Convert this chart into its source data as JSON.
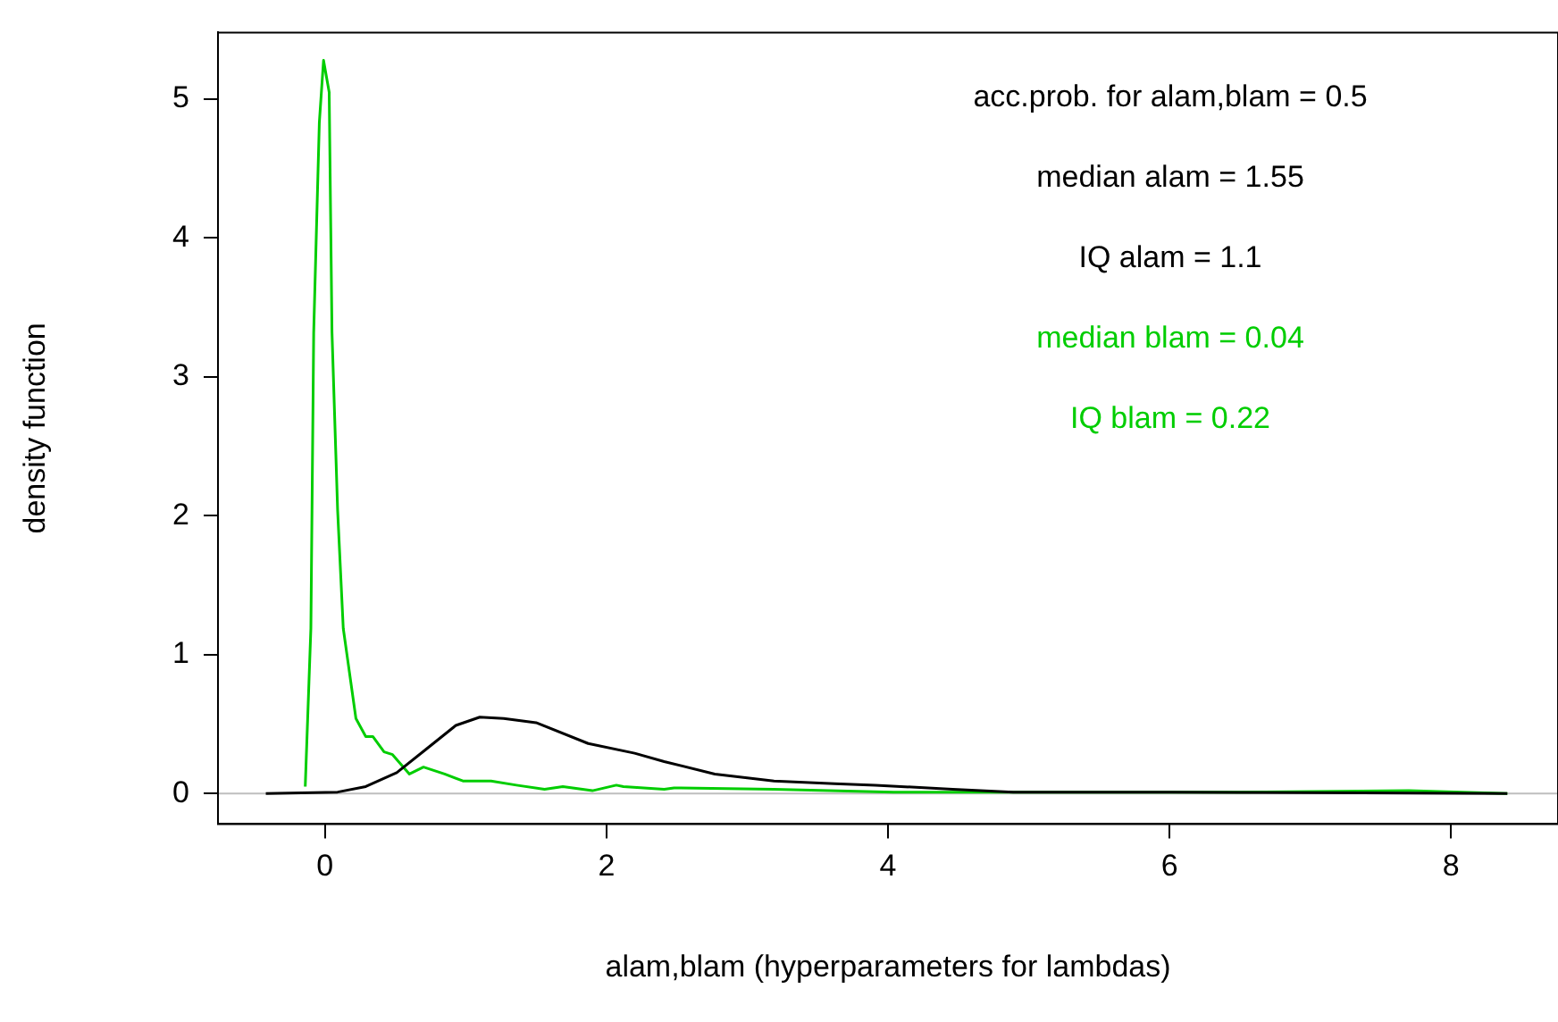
{
  "chart_data": {
    "type": "line",
    "xlabel": "alam,blam (hyperparameters for lambdas)",
    "ylabel": "density function",
    "xlim": [
      -0.76,
      8.76
    ],
    "ylim": [
      -0.22,
      5.48
    ],
    "xticks": [
      0,
      2,
      4,
      6,
      8
    ],
    "yticks": [
      0,
      1,
      2,
      3,
      4,
      5
    ],
    "grid": false,
    "legend": false,
    "marker": "none",
    "line_style": "solid",
    "ref_lines": [
      {
        "axis": "y",
        "value": 0,
        "color": "#bebebe"
      }
    ],
    "annotations": [
      "acc.prob. for alam,blam = 0.5",
      "median alam = 1.55",
      "IQ alam = 1.1",
      "median blam = 0.04",
      "IQ blam = 0.22"
    ],
    "series": [
      {
        "color": "#000000",
        "x": [
          -0.42,
          0.09,
          0.29,
          0.51,
          0.72,
          0.93,
          1.1,
          1.27,
          1.5,
          1.87,
          2.2,
          2.41,
          2.77,
          3.19,
          3.62,
          3.91,
          4.46,
          4.89,
          6,
          8.4
        ],
        "values": [
          0,
          0.01,
          0.05,
          0.15,
          0.32,
          0.49,
          0.55,
          0.54,
          0.51,
          0.36,
          0.29,
          0.23,
          0.14,
          0.09,
          0.07,
          0.06,
          0.03,
          0.01,
          0.01,
          0
        ]
      },
      {
        "color": "#00cd00",
        "x": [
          -0.14,
          -0.1,
          -0.08,
          -0.04,
          -0.01,
          0.03,
          0.05,
          0.09,
          0.13,
          0.22,
          0.29,
          0.34,
          0.42,
          0.48,
          0.6,
          0.7,
          0.85,
          0.98,
          1.18,
          1.36,
          1.56,
          1.69,
          1.9,
          2.07,
          2.12,
          2.41,
          2.48,
          3.19,
          4.04,
          6.5,
          7.7,
          8.4
        ],
        "values": [
          0.05,
          1.19,
          3.32,
          4.83,
          5.28,
          5.05,
          3.32,
          2.04,
          1.19,
          0.54,
          0.41,
          0.41,
          0.3,
          0.28,
          0.14,
          0.19,
          0.14,
          0.09,
          0.09,
          0.06,
          0.03,
          0.05,
          0.02,
          0.06,
          0.05,
          0.03,
          0.04,
          0.03,
          0.01,
          0.01,
          0.02,
          0
        ]
      }
    ]
  }
}
